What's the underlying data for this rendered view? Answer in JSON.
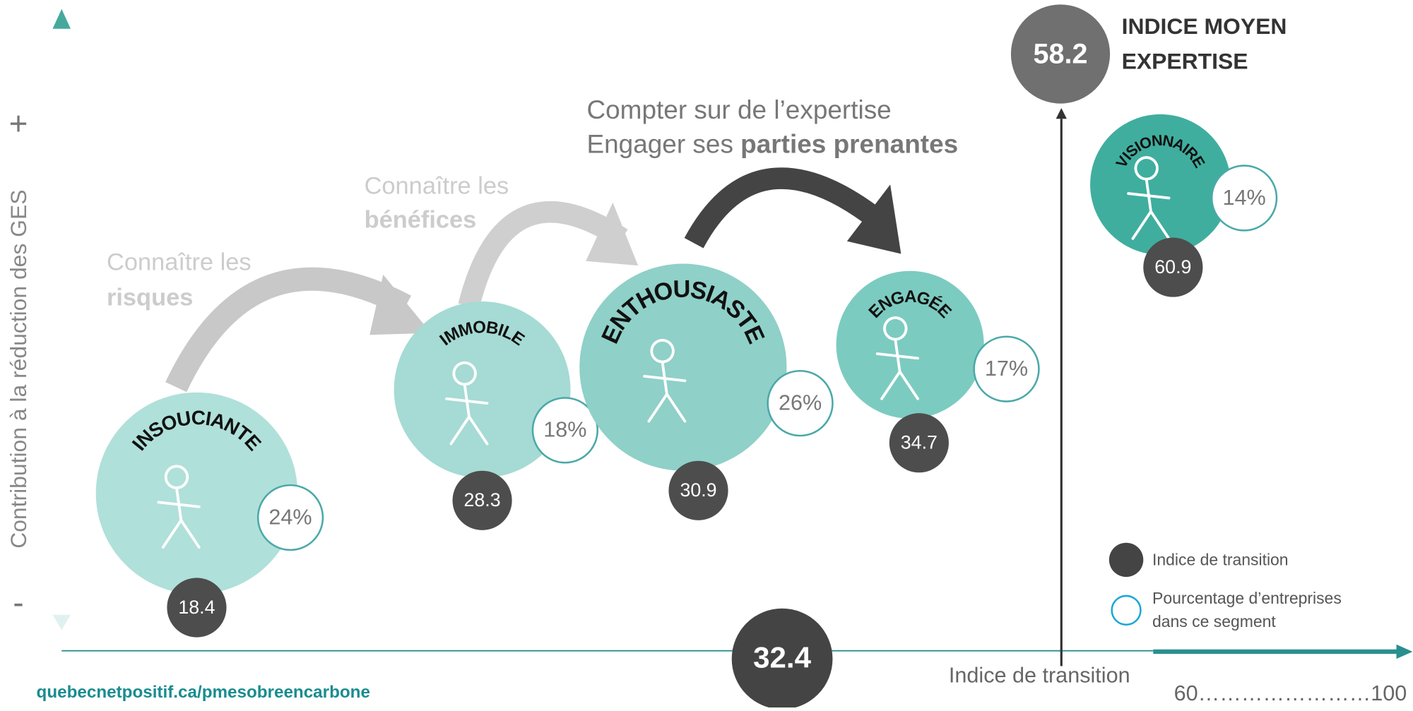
{
  "y_axis": {
    "label": "Contribution à la réduction des GES",
    "plus": "+",
    "minus": "-"
  },
  "segments": [
    {
      "name": "INSOUCIANTE",
      "index": "18.4",
      "share": "24%"
    },
    {
      "name": "IMMOBILE",
      "index": "28.3",
      "share": "18%"
    },
    {
      "name": "ENTHOUSIASTE",
      "index": "30.9",
      "share": "26%"
    },
    {
      "name": "ENGAGÉE",
      "index": "34.7",
      "share": "17%"
    },
    {
      "name": "VISIONNAIRE",
      "index": "60.9",
      "share": "14%"
    }
  ],
  "steps": [
    {
      "line1": "Connaître les",
      "bold": "risques"
    },
    {
      "line1": "Connaître les",
      "bold": "bénéfices"
    },
    {
      "line1": "Compter sur de l’expertise",
      "line2": "Engager ses",
      "bold": "parties prenantes"
    }
  ],
  "average_expertise": {
    "value": "58.2",
    "label_1": "INDICE MOYEN",
    "label_2": "EXPERTISE"
  },
  "average_transition": "32.4",
  "x_axis": {
    "label": "Indice de transition",
    "range": "60……………………100"
  },
  "legend": {
    "index": "Indice de transition",
    "share_1": "Pourcentage d’entreprises",
    "share_2": "dans ce segment"
  },
  "url": "quebecnetpositif.ca/pmesobreencarbone"
}
